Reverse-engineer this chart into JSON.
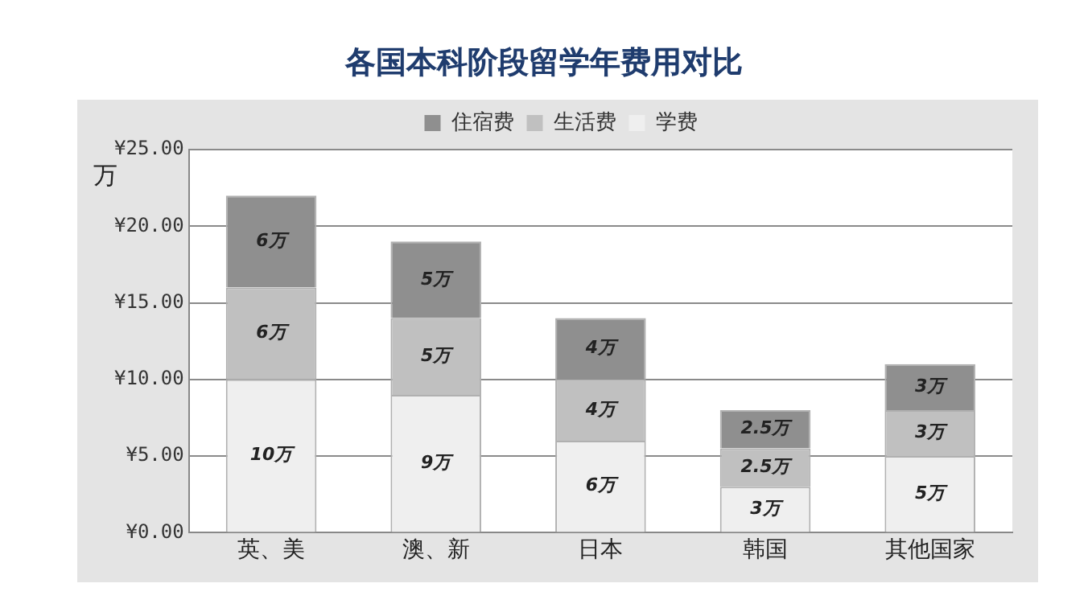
{
  "chart_data": {
    "type": "bar",
    "title": "各国本科阶段留学年费用对比",
    "ylabel": "万",
    "stacked": true,
    "legend": "top",
    "grid": "y",
    "categories": [
      "英、美",
      "澳、新",
      "日本",
      "韩国",
      "其他国家"
    ],
    "series": [
      {
        "name": "学费",
        "color": "#efefef",
        "values": [
          10,
          9,
          6,
          3,
          5
        ],
        "value_labels": [
          "10万",
          "9万",
          "6万",
          "3万",
          "5万"
        ]
      },
      {
        "name": "生活费",
        "color": "#c0c0c0",
        "values": [
          6,
          5,
          4,
          2.5,
          3
        ],
        "value_labels": [
          "6万",
          "5万",
          "4万",
          "2.5万",
          "3万"
        ]
      },
      {
        "name": "住宿费",
        "color": "#8f8f8f",
        "values": [
          6,
          5,
          4,
          2.5,
          3
        ],
        "value_labels": [
          "6万",
          "5万",
          "4万",
          "2.5万",
          "3万"
        ]
      }
    ],
    "ylim": [
      0,
      25
    ],
    "yticks": [
      {
        "value": 0,
        "label": "¥0.00"
      },
      {
        "value": 5,
        "label": "¥5.00"
      },
      {
        "value": 10,
        "label": "¥10.00"
      },
      {
        "value": 15,
        "label": "¥15.00"
      },
      {
        "value": 20,
        "label": "¥20.00"
      },
      {
        "value": 25,
        "label": "¥25.00"
      }
    ]
  }
}
